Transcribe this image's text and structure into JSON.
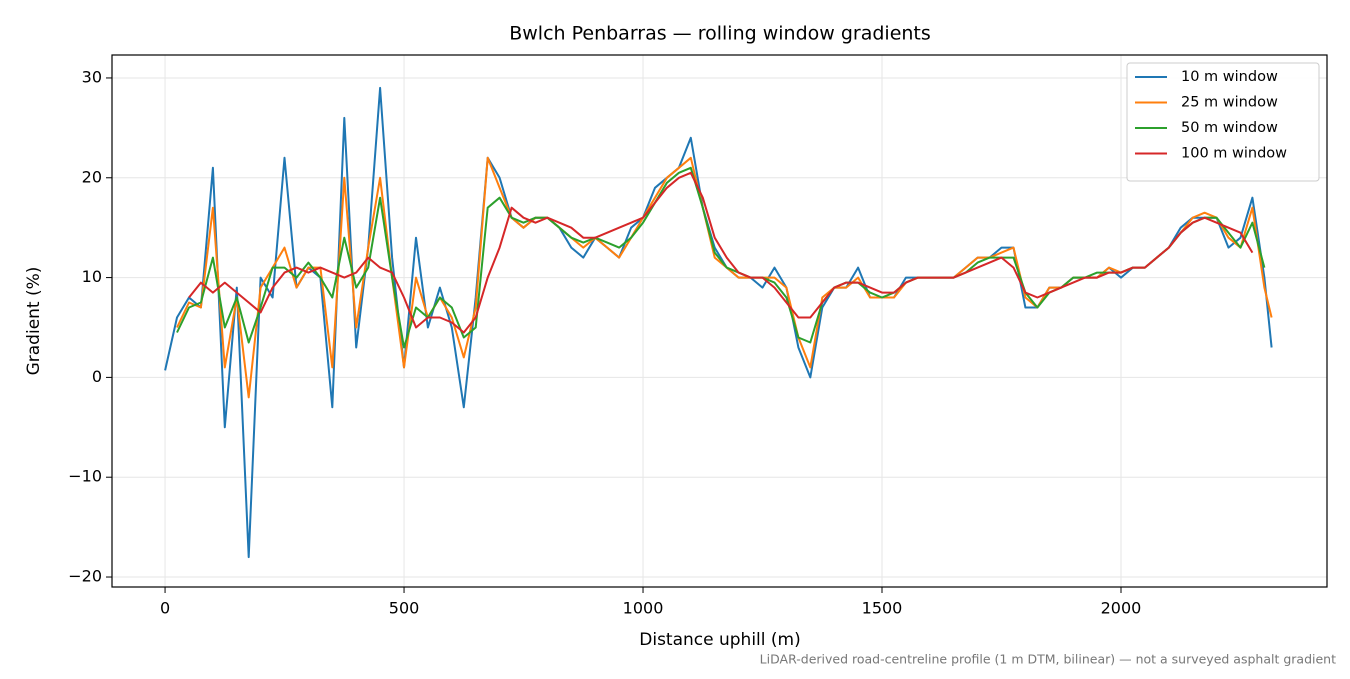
{
  "chart_data": {
    "type": "line",
    "title": "Bwlch Penbarras — rolling window gradients",
    "xlabel": "Distance uphill (m)",
    "ylabel": "Gradient (%)",
    "footnote": "LiDAR-derived road-centreline profile (1 m DTM, bilinear) — not a surveyed asphalt gradient",
    "xlim": [
      -111,
      2431
    ],
    "ylim": [
      -21,
      32.3
    ],
    "xticks": [
      0,
      500,
      1000,
      1500,
      2000
    ],
    "yticks": [
      {
        "value": -20,
        "label": "−20"
      },
      {
        "value": -10,
        "label": "−10"
      },
      0,
      10,
      20,
      30
    ],
    "grid": true,
    "legend": "upper right",
    "x": [
      0,
      25,
      50,
      75,
      100,
      125,
      150,
      175,
      200,
      225,
      250,
      275,
      300,
      325,
      350,
      375,
      400,
      425,
      450,
      475,
      500,
      525,
      550,
      575,
      600,
      625,
      650,
      675,
      700,
      725,
      750,
      775,
      800,
      825,
      850,
      875,
      900,
      925,
      950,
      975,
      1000,
      1025,
      1050,
      1075,
      1100,
      1125,
      1150,
      1175,
      1200,
      1225,
      1250,
      1275,
      1300,
      1325,
      1350,
      1375,
      1400,
      1425,
      1450,
      1475,
      1500,
      1525,
      1550,
      1575,
      1600,
      1625,
      1650,
      1675,
      1700,
      1725,
      1750,
      1775,
      1800,
      1825,
      1850,
      1875,
      1900,
      1925,
      1950,
      1975,
      2000,
      2025,
      2050,
      2075,
      2100,
      2125,
      2150,
      2175,
      2200,
      2225,
      2250,
      2275,
      2300,
      2315
    ],
    "series": [
      {
        "name": "10 m window",
        "color": "#1f77b4",
        "values": [
          0.7,
          6,
          8,
          7,
          21,
          -5,
          9,
          -18,
          10,
          8,
          22,
          9,
          11,
          10,
          -3,
          26,
          3,
          13,
          29,
          12,
          1,
          14,
          5,
          9,
          5,
          -3,
          8,
          22,
          20,
          16,
          15,
          16,
          16,
          15,
          13,
          12,
          14,
          13,
          12,
          15,
          16,
          19,
          20,
          21,
          24,
          17,
          13,
          11,
          10,
          10,
          9,
          11,
          9,
          3,
          0,
          7,
          9,
          9,
          11,
          8,
          8,
          8,
          10,
          10,
          10,
          10,
          10,
          11,
          12,
          12,
          13,
          13,
          7,
          7,
          9,
          9,
          10,
          10,
          10,
          11,
          10,
          11,
          11,
          12,
          13,
          15,
          16,
          16,
          16,
          13,
          14,
          18,
          10,
          3
        ]
      },
      {
        "name": "25 m window",
        "color": "#ff7f0e",
        "values": [
          null,
          5,
          7.5,
          7,
          17,
          1,
          8,
          -2,
          9,
          11,
          13,
          9,
          11,
          11,
          1,
          20,
          5,
          13,
          20,
          10,
          1,
          10,
          6,
          8,
          6,
          2,
          7,
          22,
          19,
          16,
          15,
          16,
          16,
          15,
          14,
          13,
          14,
          13,
          12,
          14,
          16,
          18,
          20,
          21,
          22,
          17,
          12,
          11,
          10,
          10,
          10,
          10,
          9,
          4,
          1,
          8,
          9,
          9,
          10,
          8,
          8,
          8,
          9.5,
          10,
          10,
          10,
          10,
          11,
          12,
          12,
          12.5,
          13,
          8,
          7,
          9,
          9,
          10,
          10,
          10,
          11,
          10.5,
          11,
          11,
          12,
          13,
          14.5,
          16,
          16.5,
          16,
          14,
          13,
          17,
          9,
          6
        ]
      },
      {
        "name": "50 m window",
        "color": "#2ca02c",
        "values": [
          null,
          4.5,
          7,
          7.5,
          12,
          5,
          8,
          3.5,
          7,
          11,
          11,
          10,
          11.5,
          10,
          8,
          14,
          9,
          11,
          18,
          10,
          3,
          7,
          6,
          8,
          7,
          4,
          5,
          17,
          18,
          16,
          15.5,
          16,
          16,
          15,
          14,
          13.5,
          14,
          13.5,
          13,
          14,
          15.5,
          17.5,
          19.5,
          20.5,
          21,
          17,
          12.5,
          11,
          10.5,
          10,
          10,
          9.5,
          8,
          4,
          3.5,
          7.5,
          9,
          9.5,
          9.5,
          8.5,
          8,
          8.5,
          9.5,
          10,
          10,
          10,
          10,
          10.5,
          11.5,
          12,
          12,
          12,
          8.5,
          7,
          8.5,
          9,
          10,
          10,
          10.5,
          10.5,
          10.5,
          11,
          11,
          12,
          13,
          14.5,
          15.5,
          16,
          16,
          14.5,
          13,
          15.5,
          11,
          null
        ]
      },
      {
        "name": "100 m window",
        "color": "#d62728",
        "values": [
          null,
          null,
          8,
          9.5,
          8.5,
          9.5,
          8.5,
          7.5,
          6.5,
          9,
          10.5,
          11,
          10.5,
          11,
          10.5,
          10,
          10.5,
          12,
          11,
          10.5,
          8,
          5,
          6,
          6,
          5.5,
          4.5,
          6,
          10,
          13,
          17,
          16,
          15.5,
          16,
          15.5,
          15,
          14,
          14,
          14.5,
          15,
          15.5,
          16,
          17.5,
          19,
          20,
          20.5,
          18,
          14,
          12,
          10.5,
          10,
          10,
          9,
          7.5,
          6,
          6,
          7.5,
          9,
          9.5,
          9.5,
          9,
          8.5,
          8.5,
          9.5,
          10,
          10,
          10,
          10,
          10.5,
          11,
          11.5,
          12,
          11,
          8.5,
          8,
          8.5,
          9,
          9.5,
          10,
          10,
          10.5,
          10.5,
          11,
          11,
          12,
          13,
          14.5,
          15.5,
          16,
          15.5,
          15,
          14.5,
          12.5,
          null,
          null
        ]
      }
    ]
  }
}
